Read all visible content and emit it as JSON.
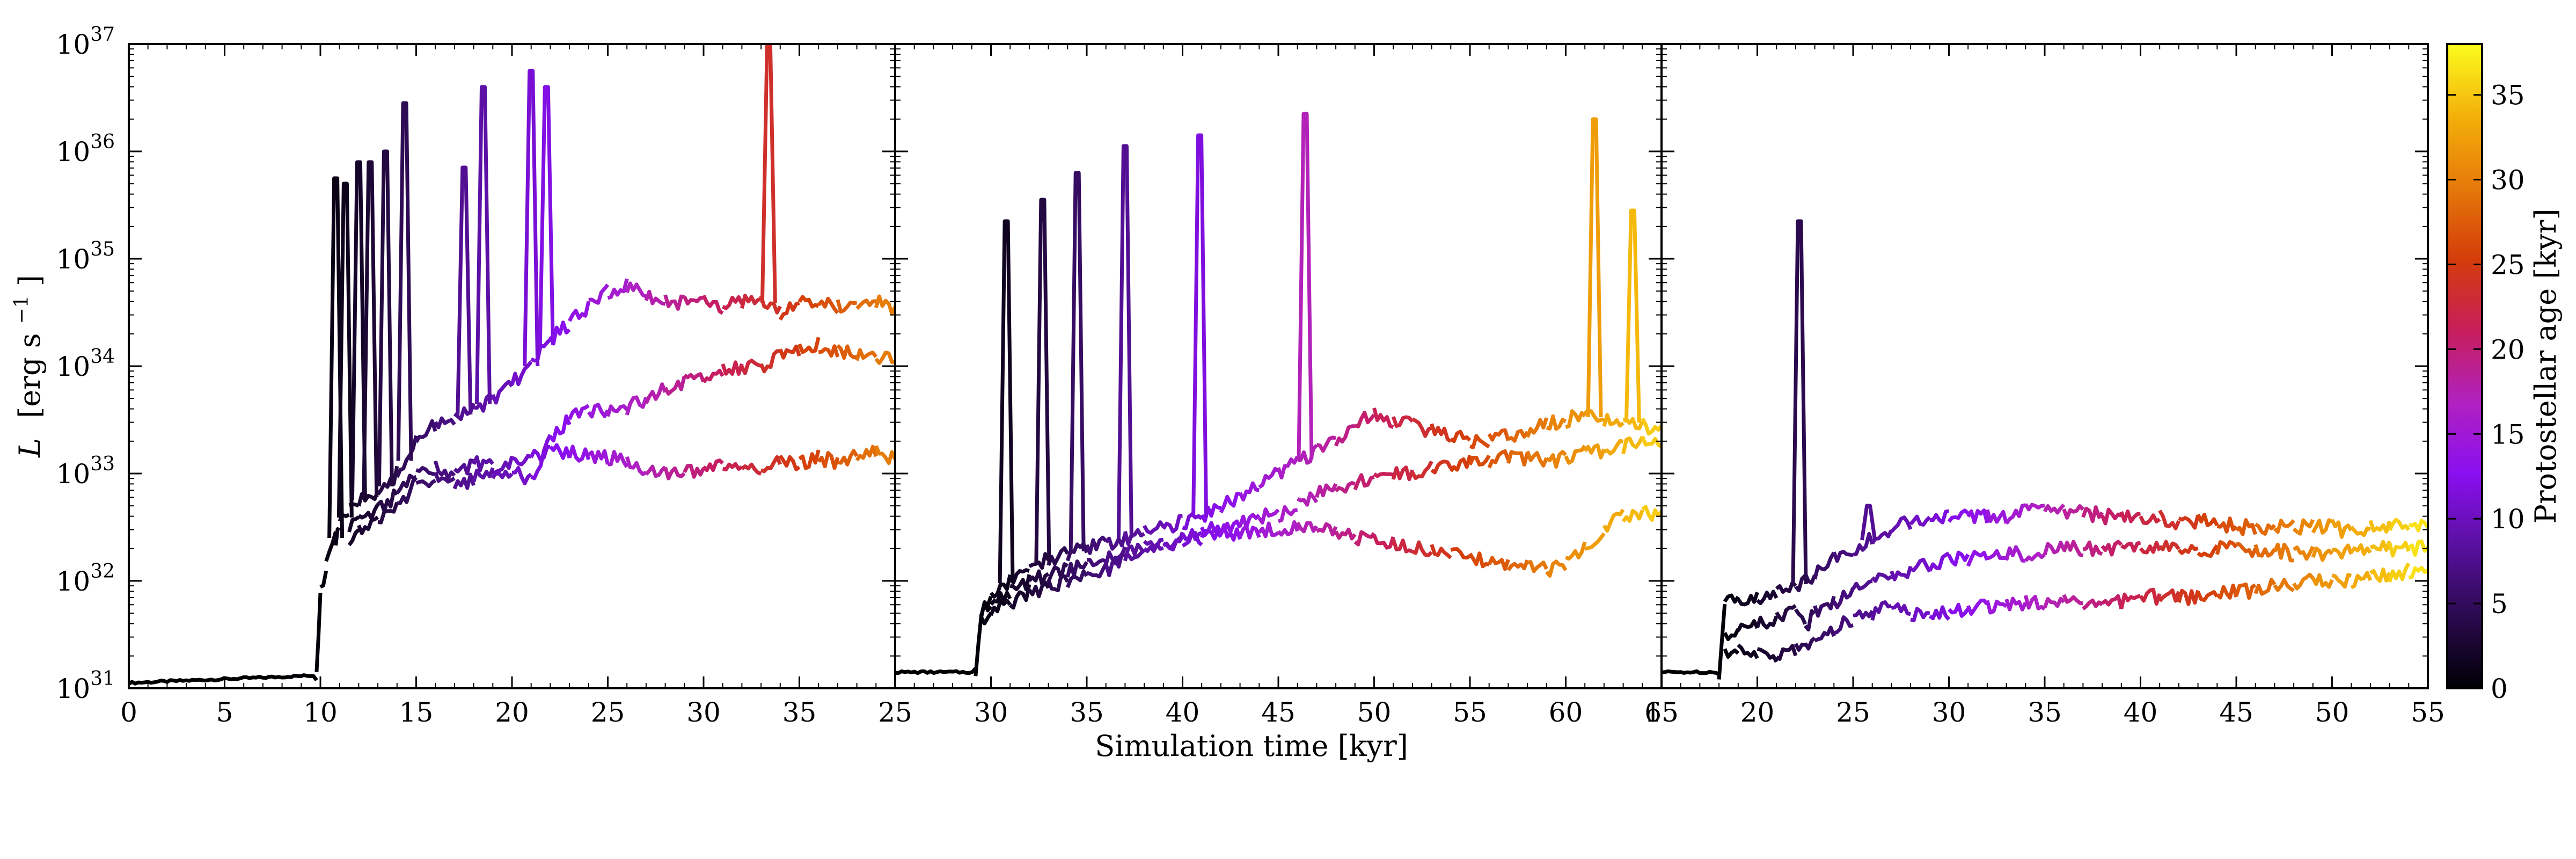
{
  "chart_data": [
    {
      "type": "line",
      "panel": "left",
      "xlim": [
        0,
        40
      ],
      "ylim_log10": [
        31,
        37
      ],
      "x_ticks": [
        "0",
        "5",
        "10",
        "15",
        "20",
        "25",
        "30",
        "35"
      ],
      "series": [
        {
          "x": [
            0,
            9.8,
            10.0,
            10.3,
            10.8,
            11.0,
            11.5,
            12,
            13,
            14,
            15,
            16,
            17,
            18,
            19,
            20,
            21,
            22,
            23,
            24,
            25,
            26,
            27,
            28,
            29,
            30,
            31,
            32,
            33,
            34,
            35,
            36,
            37,
            38,
            39,
            40
          ],
          "log10_L": [
            31.05,
            31.12,
            31.9,
            32.15,
            32.4,
            32.5,
            32.65,
            32.75,
            32.8,
            33.0,
            33.3,
            33.45,
            33.5,
            33.6,
            33.7,
            33.85,
            34.0,
            34.25,
            34.4,
            34.55,
            34.7,
            34.75,
            34.65,
            34.6,
            34.6,
            34.65,
            34.55,
            34.6,
            34.65,
            34.5,
            34.6,
            34.6,
            34.55,
            34.6,
            34.6,
            34.5
          ]
        },
        {
          "x": [
            11.5,
            12,
            13,
            14,
            15,
            16,
            17,
            18,
            19,
            20,
            21,
            22,
            23,
            24,
            25,
            26,
            27,
            28,
            29,
            30,
            31,
            32,
            33,
            34,
            35,
            36,
            37,
            38,
            39,
            40
          ],
          "log10_L": [
            32.5,
            32.6,
            32.65,
            32.8,
            33.0,
            33.05,
            33.0,
            33.1,
            33.05,
            33.0,
            32.95,
            33.3,
            33.5,
            33.6,
            33.55,
            33.6,
            33.7,
            33.8,
            33.85,
            33.9,
            33.95,
            34.0,
            34.0,
            34.1,
            34.15,
            34.2,
            34.15,
            34.1,
            34.05,
            34.1
          ]
        },
        {
          "x": [
            11.5,
            12,
            13,
            14,
            15,
            16,
            17,
            18,
            19,
            20,
            21,
            22,
            23,
            24,
            25,
            26,
            27,
            28,
            29,
            30,
            31,
            32,
            33,
            34,
            35,
            36,
            37,
            38,
            39,
            40
          ],
          "log10_L": [
            32.4,
            32.5,
            32.55,
            32.7,
            32.9,
            32.95,
            32.9,
            32.95,
            33.0,
            33.1,
            33.15,
            33.2,
            33.2,
            33.15,
            33.15,
            33.1,
            33.05,
            33.0,
            33.0,
            33.05,
            33.1,
            33.0,
            33.05,
            33.1,
            33.1,
            33.15,
            33.1,
            33.15,
            33.2,
            33.15
          ]
        }
      ],
      "bursts": [
        {
          "x": 10.8,
          "log10_L": 35.75
        },
        {
          "x": 11.3,
          "log10_L": 35.7
        },
        {
          "x": 12.0,
          "log10_L": 35.9
        },
        {
          "x": 12.6,
          "log10_L": 35.9
        },
        {
          "x": 13.4,
          "log10_L": 36.0
        },
        {
          "x": 14.4,
          "log10_L": 36.45
        },
        {
          "x": 17.5,
          "log10_L": 35.85
        },
        {
          "x": 18.5,
          "log10_L": 36.6
        },
        {
          "x": 21.0,
          "log10_L": 36.75
        },
        {
          "x": 21.8,
          "log10_L": 36.6
        },
        {
          "x": 33.4,
          "log10_L": 37.0
        }
      ]
    },
    {
      "type": "line",
      "panel": "middle",
      "xlim": [
        25,
        65
      ],
      "ylim_log10": [
        31,
        37
      ],
      "x_ticks": [
        "25",
        "30",
        "35",
        "40",
        "45",
        "50",
        "55",
        "60",
        "65"
      ],
      "series": [
        {
          "x": [
            25,
            29.2,
            29.5,
            30,
            31,
            32,
            33,
            34,
            35,
            36,
            37,
            38,
            39,
            40,
            41,
            42,
            43,
            44,
            45,
            46,
            47,
            48,
            49,
            50,
            51,
            52,
            53,
            54,
            55,
            56,
            57,
            58,
            59,
            60,
            61,
            62,
            63,
            64,
            65
          ],
          "log10_L": [
            31.15,
            31.15,
            31.7,
            31.9,
            32.0,
            32.1,
            32.2,
            32.25,
            32.3,
            32.35,
            32.4,
            32.45,
            32.5,
            32.55,
            32.6,
            32.7,
            32.8,
            32.9,
            33.0,
            33.1,
            33.2,
            33.3,
            33.45,
            33.55,
            33.5,
            33.45,
            33.4,
            33.35,
            33.3,
            33.3,
            33.35,
            33.4,
            33.45,
            33.5,
            33.55,
            33.5,
            33.5,
            33.45,
            33.4
          ]
        },
        {
          "x": [
            29.5,
            30,
            31,
            32,
            33,
            34,
            35,
            36,
            37,
            38,
            39,
            40,
            41,
            42,
            43,
            44,
            45,
            46,
            47,
            48,
            49,
            50,
            51,
            52,
            53,
            54,
            55,
            56,
            57,
            58,
            59,
            60,
            61,
            62,
            63,
            64,
            65
          ],
          "log10_L": [
            31.7,
            31.8,
            31.9,
            32.0,
            32.05,
            32.1,
            32.15,
            32.2,
            32.25,
            32.3,
            32.35,
            32.4,
            32.45,
            32.5,
            32.55,
            32.6,
            32.6,
            32.7,
            32.8,
            32.85,
            32.9,
            32.95,
            33.0,
            33.0,
            33.05,
            33.05,
            33.1,
            33.1,
            33.15,
            33.15,
            33.1,
            33.15,
            33.2,
            33.2,
            33.25,
            33.3,
            33.25
          ]
        },
        {
          "x": [
            29.5,
            30,
            31,
            32,
            33,
            34,
            35,
            36,
            37,
            38,
            39,
            40,
            41,
            42,
            43,
            44,
            45,
            46,
            47,
            48,
            49,
            50,
            51,
            52,
            53,
            54,
            55,
            56,
            57,
            58,
            59,
            60,
            61,
            62,
            63,
            64,
            65
          ],
          "log10_L": [
            31.6,
            31.7,
            31.8,
            31.9,
            31.95,
            32.0,
            32.05,
            32.1,
            32.2,
            32.25,
            32.3,
            32.35,
            32.4,
            32.45,
            32.45,
            32.45,
            32.5,
            32.5,
            32.5,
            32.45,
            32.4,
            32.4,
            32.35,
            32.3,
            32.3,
            32.25,
            32.2,
            32.2,
            32.15,
            32.15,
            32.1,
            32.15,
            32.3,
            32.5,
            32.6,
            32.65,
            32.6
          ]
        }
      ],
      "bursts": [
        {
          "x": 30.8,
          "log10_L": 35.35
        },
        {
          "x": 32.7,
          "log10_L": 35.55
        },
        {
          "x": 34.5,
          "log10_L": 35.8
        },
        {
          "x": 37.0,
          "log10_L": 36.05
        },
        {
          "x": 40.9,
          "log10_L": 36.15
        },
        {
          "x": 46.4,
          "log10_L": 36.35
        },
        {
          "x": 61.5,
          "log10_L": 36.3
        },
        {
          "x": 63.5,
          "log10_L": 35.45
        }
      ]
    },
    {
      "type": "line",
      "panel": "right",
      "xlim": [
        15,
        55
      ],
      "ylim_log10": [
        31,
        37
      ],
      "x_ticks": [
        "15",
        "20",
        "25",
        "30",
        "35",
        "40",
        "45",
        "50",
        "55"
      ],
      "series": [
        {
          "x": [
            15,
            18.0,
            18.3,
            19,
            20,
            21,
            22,
            22.5,
            23,
            24,
            25,
            26,
            27,
            28,
            29,
            30,
            31,
            32,
            33,
            34,
            35,
            36,
            37,
            38,
            39,
            40,
            41,
            42,
            43,
            44,
            45,
            46,
            47,
            48,
            49,
            50,
            51,
            52,
            53,
            54,
            55
          ],
          "log10_L": [
            31.15,
            31.15,
            31.8,
            31.85,
            31.85,
            31.9,
            31.95,
            32.0,
            32.05,
            32.2,
            32.3,
            32.4,
            32.5,
            32.55,
            32.6,
            32.6,
            32.6,
            32.6,
            32.6,
            32.65,
            32.7,
            32.65,
            32.65,
            32.6,
            32.6,
            32.6,
            32.6,
            32.55,
            32.55,
            32.55,
            32.5,
            32.5,
            32.5,
            32.5,
            32.5,
            32.5,
            32.45,
            32.5,
            32.5,
            32.5,
            32.5
          ]
        },
        {
          "x": [
            18.3,
            19,
            20,
            21,
            22,
            22.5,
            23,
            24,
            25,
            26,
            27,
            28,
            29,
            30,
            31,
            32,
            33,
            34,
            35,
            36,
            37,
            38,
            39,
            40,
            41,
            42,
            43,
            44,
            45,
            46,
            47,
            48,
            49,
            50,
            51,
            52,
            53,
            54,
            55
          ],
          "log10_L": [
            31.5,
            31.55,
            31.6,
            31.65,
            31.7,
            31.55,
            31.7,
            31.8,
            31.9,
            32.0,
            32.05,
            32.1,
            32.15,
            32.2,
            32.2,
            32.25,
            32.25,
            32.25,
            32.3,
            32.3,
            32.3,
            32.3,
            32.3,
            32.3,
            32.3,
            32.3,
            32.3,
            32.3,
            32.3,
            32.3,
            32.3,
            32.25,
            32.25,
            32.25,
            32.3,
            32.3,
            32.3,
            32.3,
            32.3
          ]
        },
        {
          "x": [
            18.3,
            19,
            20,
            21,
            22,
            22.5,
            23,
            24,
            25,
            26,
            27,
            28,
            29,
            30,
            31,
            32,
            33,
            34,
            35,
            36,
            37,
            38,
            39,
            40,
            41,
            42,
            43,
            44,
            45,
            46,
            47,
            48,
            49,
            50,
            51,
            52,
            53,
            54,
            55
          ],
          "log10_L": [
            31.3,
            31.35,
            31.3,
            31.3,
            31.35,
            31.4,
            31.45,
            31.55,
            31.65,
            31.7,
            31.75,
            31.7,
            31.7,
            31.7,
            31.75,
            31.75,
            31.8,
            31.8,
            31.8,
            31.8,
            31.8,
            31.8,
            31.8,
            31.85,
            31.85,
            31.85,
            31.85,
            31.9,
            31.9,
            31.9,
            31.95,
            31.95,
            32.0,
            32.0,
            32.0,
            32.05,
            32.05,
            32.1,
            32.1
          ]
        }
      ],
      "bursts": [
        {
          "x": 22.2,
          "log10_L": 35.35
        },
        {
          "x": 25.8,
          "log10_L": 32.7
        }
      ]
    }
  ],
  "y_ticks": [
    {
      "exp": 31,
      "text_base": "10",
      "text_exp": "31"
    },
    {
      "exp": 32,
      "text_base": "10",
      "text_exp": "32"
    },
    {
      "exp": 33,
      "text_base": "10",
      "text_exp": "33"
    },
    {
      "exp": 34,
      "text_base": "10",
      "text_exp": "34"
    },
    {
      "exp": 35,
      "text_base": "10",
      "text_exp": "35"
    },
    {
      "exp": 36,
      "text_base": "10",
      "text_exp": "36"
    },
    {
      "exp": 37,
      "text_base": "10",
      "text_exp": "37"
    }
  ],
  "xlabel": "Simulation time [kyr]",
  "ylabel": {
    "symbol": "L",
    "units_main": "[erg s",
    "units_exp": "−1",
    "units_close": "]"
  },
  "colorbar": {
    "label": "Protostellar age [kyr]",
    "range": [
      0,
      38
    ],
    "ticks": [
      "0",
      "5",
      "10",
      "15",
      "20",
      "25",
      "30",
      "35"
    ],
    "gradient": [
      "#000004",
      "#2b0a4e",
      "#5a10a0",
      "#8a0ff0",
      "#b021c0",
      "#c71e5a",
      "#d43d0a",
      "#e67a0a",
      "#f4b00a",
      "#fcfc1e"
    ]
  }
}
